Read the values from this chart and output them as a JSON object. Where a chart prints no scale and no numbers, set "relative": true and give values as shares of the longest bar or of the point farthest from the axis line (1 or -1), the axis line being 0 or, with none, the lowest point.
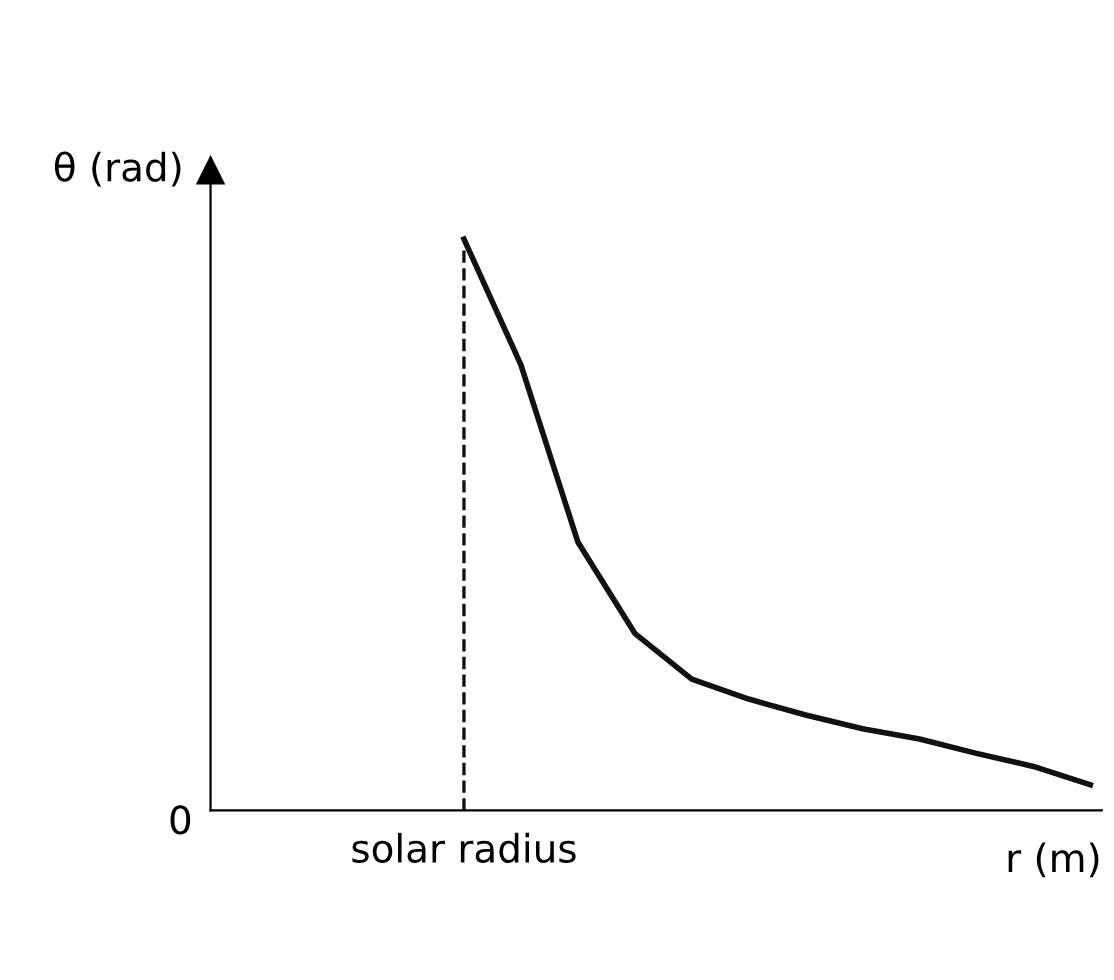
{
  "chart_data": {
    "type": "line",
    "relative": true,
    "xlabel": "r (m)",
    "categories": [
      null,
      null,
      null,
      null,
      null,
      null,
      null,
      null,
      null,
      null,
      null,
      null
    ],
    "marker": "none",
    "line_style": "solid",
    "series": [
      {
        "color": "#111111",
        "values": [
          1.0,
          0.78,
          0.47,
          0.31,
          0.23,
          0.195,
          0.167,
          0.143,
          0.125,
          0.1,
          0.077,
          0.045
        ]
      }
    ],
    "ref_lines": [
      {
        "axis": "x",
        "label": "solar radius",
        "line_style": "dashed",
        "color": "#111111"
      }
    ],
    "annotations": [
      "0",
      "θ (rad)"
    ]
  }
}
